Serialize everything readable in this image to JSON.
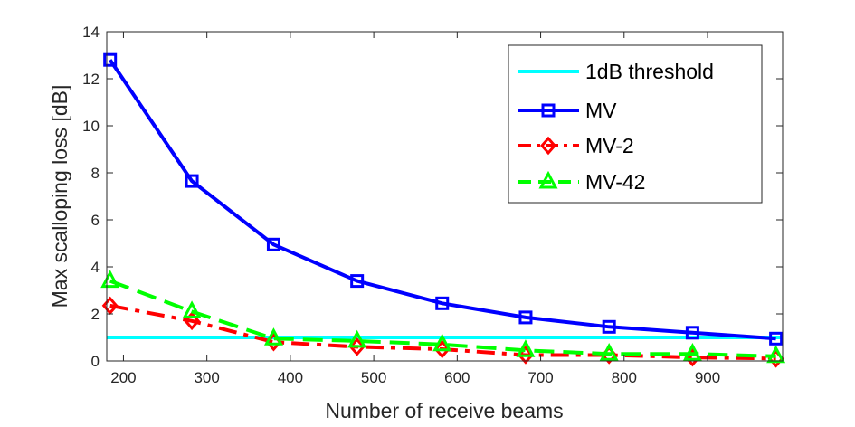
{
  "chart_data": {
    "type": "line",
    "xlabel": "Number of receive beams",
    "ylabel": "Max scalloping loss [dB]",
    "xlim": [
      180,
      990
    ],
    "ylim": [
      0,
      14
    ],
    "xticks": [
      200,
      300,
      400,
      500,
      600,
      700,
      800,
      900
    ],
    "yticks": [
      0,
      2,
      4,
      6,
      8,
      10,
      12,
      14
    ],
    "grid": false,
    "legend_position": "top-right",
    "series": [
      {
        "name": "1dB threshold",
        "color": "#00FFFF",
        "style": "solid",
        "marker": "none",
        "x": [
          180,
          990
        ],
        "y": [
          1,
          1
        ]
      },
      {
        "name": "MV",
        "color": "#0000FF",
        "style": "solid",
        "marker": "square",
        "x": [
          184,
          282,
          380,
          480,
          582,
          682,
          782,
          882,
          982
        ],
        "y": [
          12.8,
          7.65,
          4.95,
          3.4,
          2.45,
          1.85,
          1.45,
          1.2,
          0.95
        ]
      },
      {
        "name": "MV-2",
        "color": "#FF0000",
        "style": "dashdot",
        "marker": "diamond",
        "x": [
          184,
          282,
          380,
          480,
          582,
          682,
          782,
          882,
          982
        ],
        "y": [
          2.35,
          1.7,
          0.8,
          0.6,
          0.5,
          0.25,
          0.25,
          0.15,
          0.1
        ]
      },
      {
        "name": "MV-42",
        "color": "#00FF00",
        "style": "dashed",
        "marker": "triangle",
        "x": [
          184,
          282,
          380,
          480,
          582,
          682,
          782,
          882,
          982
        ],
        "y": [
          3.4,
          2.1,
          0.95,
          0.85,
          0.7,
          0.45,
          0.3,
          0.3,
          0.2
        ]
      }
    ]
  }
}
